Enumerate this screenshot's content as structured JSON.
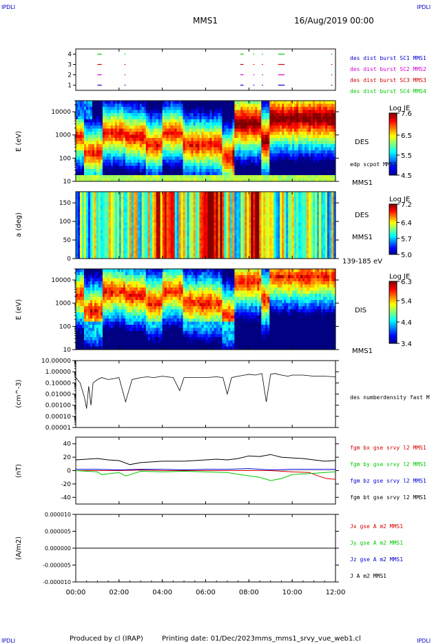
{
  "header": {
    "corner_tl": "IPDLI",
    "corner_tr": "IPDLI",
    "corner_bl": "IPDLI",
    "corner_br": "IPDLI",
    "spacecraft": "MMS1",
    "date": "16/Aug/2019 00:00"
  },
  "footer": {
    "produced": "Produced by cl (IRAP)",
    "printing": "Printing date: 01/Dec/2023",
    "file": "mms_mms1_srvy_vue_web1.cl"
  },
  "colors": {
    "red": "#d40000",
    "green": "#00c800",
    "blue": "#0000d0",
    "magenta": "#d000d0",
    "black": "#000000"
  },
  "chart_data": [
    {
      "type": "scatter",
      "id": "burst",
      "title": "",
      "ylabel": "",
      "ylim": [
        0.5,
        4.5
      ],
      "yticks": [
        "1",
        "2",
        "3",
        "4"
      ],
      "legend": [
        "des dist burst SC1 MMS1",
        "des dist burst SC2 MMS2",
        "des dist burst SC3 MMS3",
        "des dist burst SC4 MMS4"
      ],
      "legend_colors": [
        "#0000d0",
        "#d000d0",
        "#d40000",
        "#00c800"
      ],
      "row_colors": [
        "#0000d0",
        "#d000d0",
        "#d40000",
        "#00c800"
      ],
      "intervals_hours": [
        [
          1.0,
          1.2
        ],
        [
          2.25,
          2.3
        ],
        [
          7.6,
          7.75
        ],
        [
          8.2,
          8.25
        ],
        [
          8.6,
          8.65
        ],
        [
          9.35,
          9.65
        ],
        [
          11.8,
          11.85
        ]
      ]
    },
    {
      "type": "heatmap",
      "id": "des_energy",
      "ylabel": "E (eV)",
      "scale": "log",
      "ylim": [
        10,
        30000
      ],
      "yticks": [
        "10",
        "100",
        "1000",
        "10000"
      ],
      "colorbar": {
        "title": "Log JE",
        "min": 4.5,
        "max": 7.6,
        "ticks": [
          "7.6",
          "6.5",
          "5.5",
          "4.5"
        ]
      },
      "labels": [
        "DES",
        "edp scpot MMS1",
        "MMS1"
      ]
    },
    {
      "type": "heatmap",
      "id": "des_pitch",
      "ylabel": "a (deg)",
      "ylim": [
        0,
        180
      ],
      "yticks": [
        "0",
        "50",
        "100",
        "150"
      ],
      "colorbar": {
        "title": "Log JE",
        "min": 5.0,
        "max": 7.2,
        "ticks": [
          "7.2",
          "6.4",
          "5.7",
          "5.0"
        ]
      },
      "labels": [
        "DES",
        "MMS1",
        "139-185 eV"
      ]
    },
    {
      "type": "heatmap",
      "id": "dis_energy",
      "ylabel": "E (eV)",
      "scale": "log",
      "ylim": [
        10,
        30000
      ],
      "yticks": [
        "10",
        "100",
        "1000",
        "10000"
      ],
      "colorbar": {
        "title": "Log JE",
        "min": 3.4,
        "max": 6.3,
        "ticks": [
          "6.3",
          "5.4",
          "4.4",
          "3.4"
        ]
      },
      "labels": [
        "DIS",
        "MMS1"
      ]
    },
    {
      "type": "line",
      "id": "density",
      "ylabel": "(cm^-3)",
      "scale": "log",
      "ylim": [
        1e-05,
        10
      ],
      "yticks": [
        "0.00001",
        "0.00010",
        "0.00100",
        "0.01000",
        "0.10000",
        "1.00000",
        "10.00000"
      ],
      "series": [
        {
          "name": "des numberdensity fast M",
          "color": "#000000"
        }
      ],
      "x": [
        0.0,
        0.2,
        0.4,
        0.5,
        0.6,
        0.7,
        0.8,
        1.0,
        1.2,
        1.5,
        1.8,
        2.0,
        2.3,
        2.6,
        3.0,
        3.3,
        3.6,
        4.0,
        4.5,
        4.8,
        5.0,
        5.5,
        6.0,
        6.5,
        6.8,
        7.0,
        7.2,
        7.5,
        7.8,
        8.0,
        8.3,
        8.6,
        8.8,
        9.0,
        9.2,
        9.5,
        9.8,
        10.0,
        10.5,
        11.0,
        11.5,
        12.0
      ],
      "values": [
        0.3,
        0.1,
        0.005,
        0.0005,
        0.05,
        0.001,
        0.1,
        0.2,
        0.3,
        0.2,
        0.25,
        0.3,
        0.002,
        0.2,
        0.3,
        0.35,
        0.3,
        0.4,
        0.3,
        0.02,
        0.3,
        0.3,
        0.3,
        0.35,
        0.3,
        0.01,
        0.3,
        0.4,
        0.5,
        0.6,
        0.5,
        0.7,
        0.002,
        0.6,
        0.7,
        0.5,
        0.4,
        0.5,
        0.5,
        0.4,
        0.4,
        0.35
      ]
    },
    {
      "type": "line",
      "id": "field",
      "ylabel": "(nT)",
      "ylim": [
        -50,
        50
      ],
      "yticks": [
        "-40",
        "-20",
        "0",
        "20",
        "40"
      ],
      "series": [
        {
          "name": "fgm bx gse srvy l2 MMS1",
          "color": "#d40000",
          "x": [
            0,
            1,
            2,
            3,
            4,
            5,
            6,
            7,
            8,
            9,
            10,
            10.8,
            11.2,
            11.6,
            12
          ],
          "values": [
            0,
            0,
            0,
            1,
            0,
            0,
            0,
            0,
            0,
            0,
            -2,
            -3,
            -8,
            -12,
            -13
          ]
        },
        {
          "name": "fgm by gse srvy l2 MMS1",
          "color": "#00c800",
          "x": [
            0,
            1,
            1.2,
            2,
            2.3,
            3,
            4,
            5,
            6,
            7,
            7.8,
            8.5,
            9,
            9.5,
            10,
            11,
            12
          ],
          "values": [
            0,
            -2,
            -6,
            -3,
            -8,
            -1,
            -2,
            -1,
            -2,
            -3,
            -7,
            -10,
            -15,
            -12,
            -6,
            -4,
            -2
          ]
        },
        {
          "name": "fgm bz gse srvy l2 MMS1",
          "color": "#0000d0",
          "x": [
            0,
            1,
            2,
            3,
            4,
            5,
            6,
            7,
            8,
            9,
            10,
            11,
            12
          ],
          "values": [
            2,
            2,
            1,
            2,
            2,
            1,
            2,
            2,
            3,
            1,
            2,
            2,
            2
          ]
        },
        {
          "name": "fgm bt gse srvy l2 MMS1",
          "color": "#000000",
          "x": [
            0,
            0.5,
            1,
            1.5,
            2,
            2.5,
            3,
            4,
            5,
            6,
            6.5,
            7,
            7.5,
            8,
            8.5,
            9,
            9.5,
            10,
            10.5,
            11,
            11.5,
            12
          ],
          "values": [
            16,
            17,
            18,
            16,
            15,
            9,
            12,
            14,
            14,
            16,
            17,
            16,
            18,
            22,
            21,
            24,
            20,
            19,
            18,
            16,
            14,
            15
          ]
        }
      ]
    },
    {
      "type": "line",
      "id": "current",
      "ylabel": "(A/m2)",
      "ylim": [
        -1e-05,
        1e-05
      ],
      "yticks": [
        "-0.000010",
        "-0.000005",
        "0.000000",
        "0.000005",
        "0.000010"
      ],
      "series": [
        {
          "name": "Jx gse A m2 MMS1",
          "color": "#d40000",
          "values": [
            0
          ]
        },
        {
          "name": "Jy gse A m2 MMS1",
          "color": "#00c800",
          "values": [
            0
          ]
        },
        {
          "name": "Jz gse A m2 MMS1",
          "color": "#0000d0",
          "values": [
            0
          ]
        },
        {
          "name": "J A m2 MMS1",
          "color": "#000000",
          "values": [
            0
          ]
        }
      ]
    }
  ],
  "xaxis": {
    "xlim_hours": [
      0,
      12
    ],
    "ticks": [
      "00:00",
      "02:00",
      "04:00",
      "06:00",
      "08:00",
      "10:00",
      "12:00"
    ]
  }
}
